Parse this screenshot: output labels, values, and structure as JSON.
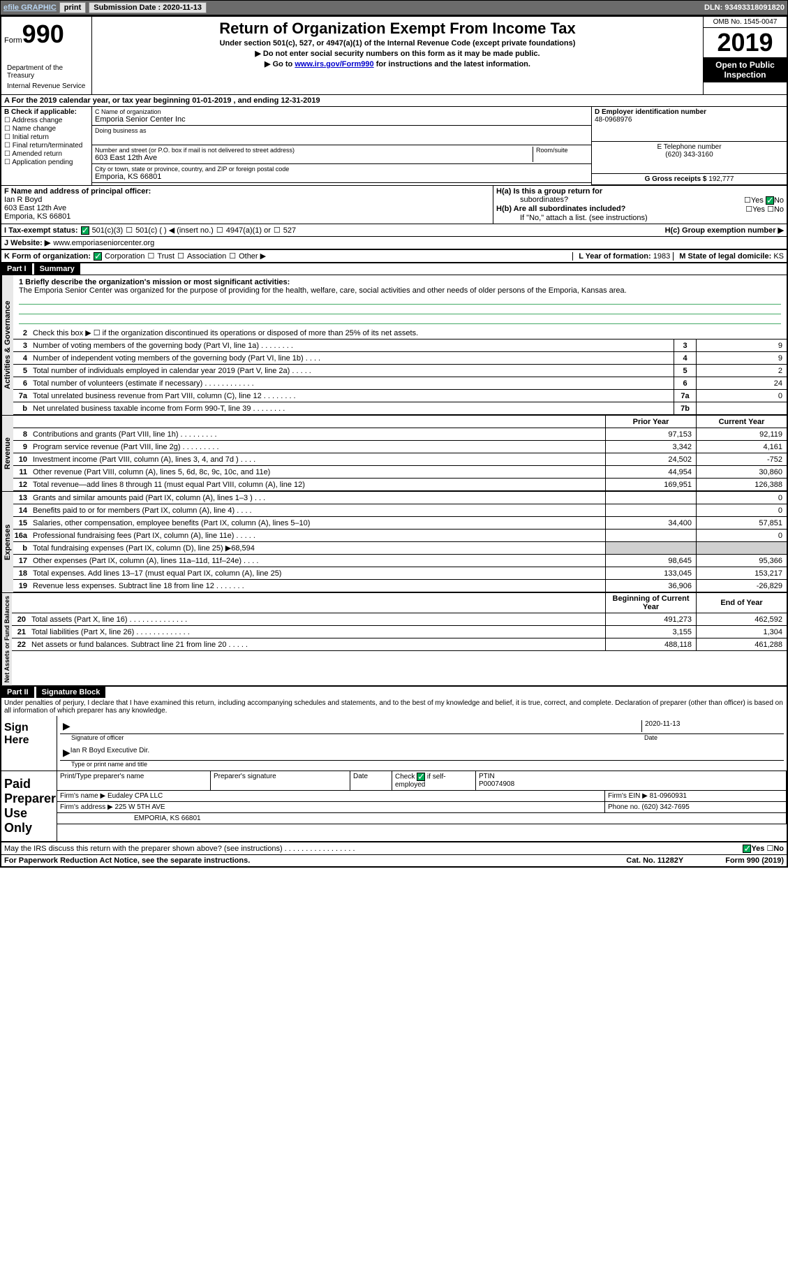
{
  "topbar": {
    "efile": "efile GRAPHIC",
    "print": "print",
    "submission_label": "Submission Date : ",
    "submission_date": "2020-11-13",
    "dln_label": "DLN: ",
    "dln": "93493318091820"
  },
  "header": {
    "form_word": "Form",
    "form_num": "990",
    "title": "Return of Organization Exempt From Income Tax",
    "subtitle": "Under section 501(c), 527, or 4947(a)(1) of the Internal Revenue Code (except private foundations)",
    "note1": "▶ Do not enter social security numbers on this form as it may be made public.",
    "note2_pre": "▶ Go to ",
    "note2_link": "www.irs.gov/Form990",
    "note2_post": " for instructions and the latest information.",
    "dept1": "Department of the Treasury",
    "dept2": "Internal Revenue Service",
    "omb": "OMB No. 1545-0047",
    "year": "2019",
    "inspect1": "Open to Public",
    "inspect2": "Inspection"
  },
  "section_a": "A For the 2019 calendar year, or tax year beginning 01-01-2019    , and ending 12-31-2019",
  "col_b": {
    "label": "B Check if applicable:",
    "opts": [
      "Address change",
      "Name change",
      "Initial return",
      "Final return/terminated",
      "Amended return",
      "Application pending"
    ]
  },
  "col_c": {
    "name_label": "C Name of organization",
    "name": "Emporia Senior Center Inc",
    "dba_label": "Doing business as",
    "dba": "",
    "addr_label": "Number and street (or P.O. box if mail is not delivered to street address)",
    "room_label": "Room/suite",
    "addr": "603 East 12th Ave",
    "city_label": "City or town, state or province, country, and ZIP or foreign postal code",
    "city": "Emporia, KS  66801"
  },
  "col_d": {
    "ein_label": "D Employer identification number",
    "ein": "48-0968976",
    "phone_label": "E Telephone number",
    "phone": "(620) 343-3160",
    "gross_label": "G Gross receipts $ ",
    "gross": "192,777"
  },
  "section_f": {
    "label": "F  Name and address of principal officer:",
    "name": "Ian R Boyd",
    "addr": "603 East 12th Ave",
    "city": "Emporia, KS  66801"
  },
  "section_h": {
    "ha": "H(a)  Is this a group return for",
    "ha2": "subordinates?",
    "hb": "H(b)  Are all subordinates included?",
    "hb_note": "If \"No,\" attach a list. (see instructions)",
    "hc": "H(c)  Group exemption number ▶",
    "yes": "Yes",
    "no": "No"
  },
  "tax_exempt": {
    "label": "I  Tax-exempt status:",
    "opt1": "501(c)(3)",
    "opt2": "501(c) (   ) ◀ (insert no.)",
    "opt3": "4947(a)(1) or",
    "opt4": "527"
  },
  "website": {
    "label": "J  Website: ▶",
    "val": "www.emporiaseniorcenter.org"
  },
  "section_k": {
    "label": "K Form of organization:",
    "opts": [
      "Corporation",
      "Trust",
      "Association",
      "Other ▶"
    ],
    "l_label": "L Year of formation: ",
    "l_val": "1983",
    "m_label": "M State of legal domicile: ",
    "m_val": "KS"
  },
  "part1": {
    "hdr": "Part I",
    "title": "Summary",
    "vtab_gov": "Activities & Governance",
    "vtab_rev": "Revenue",
    "vtab_exp": "Expenses",
    "vtab_net": "Net Assets or Fund Balances",
    "q1_label": "1  Briefly describe the organization's mission or most significant activities:",
    "q1_text": "The Emporia Senior Center was organized for the purpose of providing for the health, welfare, care, social activities and other needs of older persons of the Emporia, Kansas area.",
    "q2": "Check this box ▶ ☐  if the organization discontinued its operations or disposed of more than 25% of its net assets.",
    "rows": [
      {
        "n": "3",
        "t": "Number of voting members of the governing body (Part VI, line 1a)  .    .    .    .    .    .    .    .",
        "b": "3",
        "v": "9"
      },
      {
        "n": "4",
        "t": "Number of independent voting members of the governing body (Part VI, line 1b)  .    .    .    .",
        "b": "4",
        "v": "9"
      },
      {
        "n": "5",
        "t": "Total number of individuals employed in calendar year 2019 (Part V, line 2a)  .    .    .    .    .",
        "b": "5",
        "v": "2"
      },
      {
        "n": "6",
        "t": "Total number of volunteers (estimate if necessary)    .    .    .    .    .    .    .    .    .    .    .    .",
        "b": "6",
        "v": "24"
      },
      {
        "n": "7a",
        "t": "Total unrelated business revenue from Part VIII, column (C), line 12  .    .    .    .    .    .    .    .",
        "b": "7a",
        "v": "0"
      },
      {
        "n": "b",
        "t": "Net unrelated business taxable income from Form 990-T, line 39   .    .    .    .    .    .    .    .",
        "b": "7b",
        "v": ""
      }
    ],
    "col_prior": "Prior Year",
    "col_current": "Current Year",
    "rev_rows": [
      {
        "n": "8",
        "t": "Contributions and grants (Part VIII, line 1h)   .    .    .    .    .    .    .    .    .",
        "p": "97,153",
        "c": "92,119"
      },
      {
        "n": "9",
        "t": "Program service revenue (Part VIII, line 2g)   .    .    .    .    .    .    .    .    .",
        "p": "3,342",
        "c": "4,161"
      },
      {
        "n": "10",
        "t": "Investment income (Part VIII, column (A), lines 3, 4, and 7d )    .    .    .    .",
        "p": "24,502",
        "c": "-752"
      },
      {
        "n": "11",
        "t": "Other revenue (Part VIII, column (A), lines 5, 6d, 8c, 9c, 10c, and 11e)",
        "p": "44,954",
        "c": "30,860"
      },
      {
        "n": "12",
        "t": "Total revenue—add lines 8 through 11 (must equal Part VIII, column (A), line 12)",
        "p": "169,951",
        "c": "126,388"
      }
    ],
    "exp_rows": [
      {
        "n": "13",
        "t": "Grants and similar amounts paid (Part IX, column (A), lines 1–3 )  .    .    .",
        "p": "",
        "c": "0"
      },
      {
        "n": "14",
        "t": "Benefits paid to or for members (Part IX, column (A), line 4)  .    .    .    .",
        "p": "",
        "c": "0"
      },
      {
        "n": "15",
        "t": "Salaries, other compensation, employee benefits (Part IX, column (A), lines 5–10)",
        "p": "34,400",
        "c": "57,851"
      },
      {
        "n": "16a",
        "t": "Professional fundraising fees (Part IX, column (A), line 11e)  .    .    .    .    .",
        "p": "",
        "c": "0"
      },
      {
        "n": "b",
        "t": "Total fundraising expenses (Part IX, column (D), line 25) ▶68,594",
        "p": "shaded",
        "c": "shaded"
      },
      {
        "n": "17",
        "t": "Other expenses (Part IX, column (A), lines 11a–11d, 11f–24e)   .    .    .    .",
        "p": "98,645",
        "c": "95,366"
      },
      {
        "n": "18",
        "t": "Total expenses. Add lines 13–17 (must equal Part IX, column (A), line 25)",
        "p": "133,045",
        "c": "153,217"
      },
      {
        "n": "19",
        "t": "Revenue less expenses. Subtract line 18 from line 12 .    .    .    .    .    .    .",
        "p": "36,906",
        "c": "-26,829"
      }
    ],
    "col_begin": "Beginning of Current Year",
    "col_end": "End of Year",
    "net_rows": [
      {
        "n": "20",
        "t": "Total assets (Part X, line 16)  .    .    .    .    .    .    .    .    .    .    .    .    .    .",
        "p": "491,273",
        "c": "462,592"
      },
      {
        "n": "21",
        "t": "Total liabilities (Part X, line 26)   .    .    .    .    .    .    .    .    .    .    .    .    .",
        "p": "3,155",
        "c": "1,304"
      },
      {
        "n": "22",
        "t": "Net assets or fund balances. Subtract line 21 from line 20  .    .    .    .    .",
        "p": "488,118",
        "c": "461,288"
      }
    ]
  },
  "part2": {
    "hdr": "Part II",
    "title": "Signature Block",
    "decl": "Under penalties of perjury, I declare that I have examined this return, including accompanying schedules and statements, and to the best of my knowledge and belief, it is true, correct, and complete. Declaration of preparer (other than officer) is based on all information of which preparer has any knowledge.",
    "sign_here": "Sign Here",
    "sig_officer": "Signature of officer",
    "sig_date_label": "Date",
    "sig_date": "2020-11-13",
    "sig_name": "Ian R Boyd  Executive Dir.",
    "sig_name_label": "Type or print name and title",
    "paid": "Paid Preparer Use Only",
    "prep_name_label": "Print/Type preparer's name",
    "prep_sig_label": "Preparer's signature",
    "date_label": "Date",
    "check_if": "Check",
    "self_emp": "if self-employed",
    "ptin_label": "PTIN",
    "ptin": "P00074908",
    "firm_name_label": "Firm's name    ▶",
    "firm_name": "Eudaley CPA LLC",
    "firm_ein_label": "Firm's EIN ▶",
    "firm_ein": "81-0960931",
    "firm_addr_label": "Firm's address ▶",
    "firm_addr1": "225 W 5TH AVE",
    "firm_addr2": "EMPORIA, KS  66801",
    "firm_phone_label": "Phone no. ",
    "firm_phone": "(620) 342-7695",
    "discuss": "May the IRS discuss this return with the preparer shown above? (see instructions)   .    .    .    .    .    .    .    .    .    .    .    .    .    .    .    .    .",
    "yes": "Yes",
    "no": "No"
  },
  "footer": {
    "left": "For Paperwork Reduction Act Notice, see the separate instructions.",
    "mid": "Cat. No. 11282Y",
    "right": "Form 990 (2019)"
  }
}
